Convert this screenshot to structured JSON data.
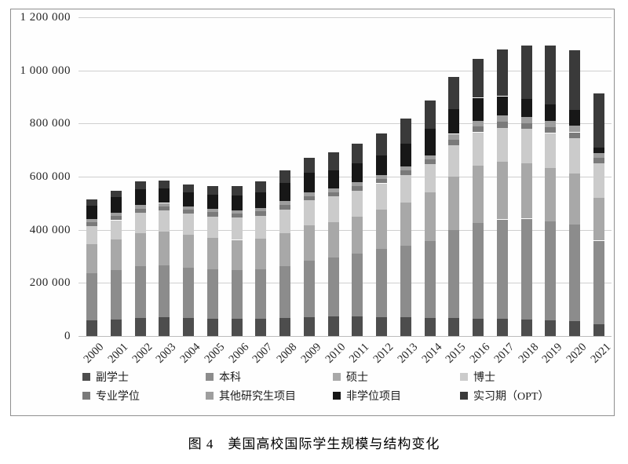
{
  "figure": {
    "caption": "图 4　美国高校国际学生规模与结构变化"
  },
  "chart_data": {
    "type": "bar",
    "stacked": true,
    "title": "图 4 美国高校国际学生规模与结构变化",
    "xlabel": "",
    "ylabel": "",
    "ylim": [
      0,
      1200000
    ],
    "grid": true,
    "legend_position": "bottom",
    "ytick_values": [
      0,
      200000,
      400000,
      600000,
      800000,
      1000000,
      1200000
    ],
    "ytick_labels": [
      "0",
      "200 000",
      "400 000",
      "600 000",
      "800 000",
      "1 000 000",
      "1 200 000"
    ],
    "categories": [
      "2000",
      "2001",
      "2002",
      "2003",
      "2004",
      "2005",
      "2006",
      "2007",
      "2008",
      "2009",
      "2010",
      "2011",
      "2012",
      "2013",
      "2014",
      "2015",
      "2016",
      "2017",
      "2018",
      "2019",
      "2020",
      "2021"
    ],
    "series": [
      {
        "name": "副学士",
        "color": "#4d4d4d",
        "values": [
          60000,
          63000,
          67000,
          70000,
          68000,
          65000,
          64000,
          65000,
          67000,
          72000,
          74000,
          73000,
          72000,
          70000,
          68000,
          67000,
          66000,
          64000,
          61000,
          58000,
          55000,
          45000
        ]
      },
      {
        "name": "本科",
        "color": "#8c8c8c",
        "values": [
          177000,
          186000,
          197000,
          196000,
          190000,
          186000,
          183000,
          186000,
          197000,
          213000,
          222000,
          238000,
          255000,
          270000,
          290000,
          332000,
          361000,
          375000,
          381000,
          374000,
          364000,
          314000
        ]
      },
      {
        "name": "硕士",
        "color": "#a8a8a8",
        "values": [
          108000,
          115000,
          124000,
          127000,
          122000,
          118000,
          115000,
          116000,
          123000,
          131000,
          133000,
          138000,
          148000,
          162000,
          183000,
          200000,
          216000,
          217000,
          207000,
          200000,
          192000,
          160000
        ]
      },
      {
        "name": "博士",
        "color": "#cbcbcb",
        "values": [
          68000,
          72000,
          76000,
          79000,
          80000,
          81000,
          83000,
          86000,
          90000,
          94000,
          96000,
          98000,
          100000,
          103000,
          107000,
          120000,
          124000,
          128000,
          130000,
          132000,
          134000,
          132000
        ]
      },
      {
        "name": "专业学位",
        "color": "#7a7a7a",
        "values": [
          16000,
          16000,
          16000,
          16000,
          16000,
          16000,
          16000,
          17000,
          17000,
          17000,
          17000,
          17000,
          17000,
          18000,
          18000,
          20000,
          21000,
          22000,
          22000,
          22000,
          22000,
          21000
        ]
      },
      {
        "name": "其他研究生项目",
        "color": "#9e9e9e",
        "values": [
          12000,
          13000,
          13000,
          13000,
          13000,
          13000,
          13000,
          13000,
          14000,
          15000,
          15000,
          15000,
          15000,
          15000,
          15000,
          22000,
          23000,
          24000,
          24000,
          24000,
          26000,
          16000
        ]
      },
      {
        "name": "非学位项目",
        "color": "#171717",
        "values": [
          51000,
          57000,
          61000,
          55000,
          52000,
          53000,
          55000,
          58000,
          69000,
          73000,
          67000,
          70000,
          72000,
          87000,
          99000,
          94000,
          86000,
          73000,
          67000,
          62000,
          58000,
          22000
        ]
      },
      {
        "name": "实习期（OPT）",
        "color": "#3a3a3a",
        "values": [
          23000,
          26000,
          29000,
          30000,
          31000,
          33000,
          36000,
          42000,
          47000,
          57000,
          67000,
          74000,
          85000,
          95000,
          106000,
          120000,
          147000,
          176000,
          203000,
          223000,
          224000,
          204000
        ]
      }
    ],
    "totals": [
      515000,
      548000,
      583000,
      586000,
      572000,
      565000,
      565000,
      583000,
      624000,
      672000,
      691000,
      723000,
      764000,
      820000,
      886000,
      975000,
      1044000,
      1079000,
      1095000,
      1095000,
      1075000,
      914000
    ]
  }
}
